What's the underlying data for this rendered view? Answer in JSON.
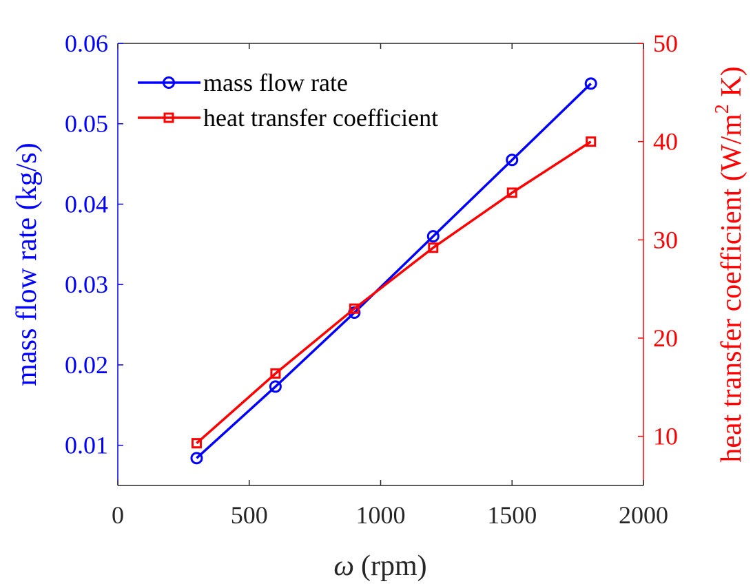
{
  "chart_data": {
    "type": "line",
    "title": "",
    "xlabel": "ω (rpm)",
    "xlabel_parts": {
      "symbol": "ω",
      "unit": "(rpm)"
    },
    "x": [
      300,
      600,
      900,
      1200,
      1500,
      1800
    ],
    "xlim": [
      0,
      2000
    ],
    "xticks": [
      "0",
      "500",
      "1000",
      "1500",
      "2000"
    ],
    "grid": false,
    "legend_position": "top-left",
    "series": [
      {
        "name": "mass flow rate",
        "axis": "left",
        "marker": "circle",
        "color": "#0000ff",
        "values": [
          0.0084,
          0.0173,
          0.0265,
          0.036,
          0.0455,
          0.055
        ]
      },
      {
        "name": "heat transfer coefficient",
        "axis": "right",
        "marker": "square",
        "color": "#ff0000",
        "values": [
          9.3,
          16.4,
          23.0,
          29.2,
          34.8,
          40.0
        ]
      }
    ],
    "left_axis": {
      "label": "mass flow rate (kg/s)",
      "ylim": [
        0.005,
        0.06
      ],
      "ticks": [
        "0.01",
        "0.02",
        "0.03",
        "0.04",
        "0.05",
        "0.06"
      ],
      "color": "#0000ff"
    },
    "right_axis": {
      "label_main": "heat transfer coefficient (W/m",
      "label_sup": "2",
      "label_end": " K)",
      "ylim": [
        5,
        50
      ],
      "ticks": [
        "10",
        "20",
        "30",
        "40",
        "50"
      ],
      "color": "#ff0000"
    }
  }
}
